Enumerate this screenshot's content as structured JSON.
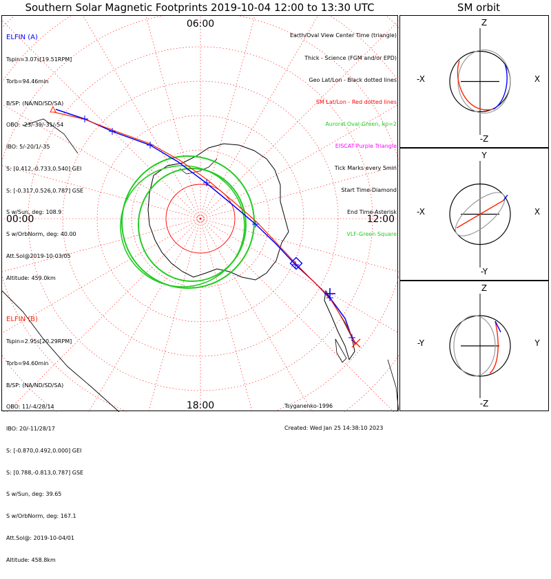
{
  "title": "Southern Solar Magnetic Footprints 2019-10-04 12:00 to 13:30 UTC",
  "sm_title": "SM orbit",
  "colors": {
    "sc_a": "#0000ff",
    "sc_b": "#ff2200",
    "oval": "#22cc22",
    "sm_grid": "#ff0000",
    "geo": "#000000",
    "viking": "#ff00ff"
  },
  "probe_a": {
    "name": "ELFIN (A)",
    "lines": [
      "Tspin=3.07s[19.51RPM]",
      "Torb=94.46min",
      "B/SP: (NA/ND/SD/SA)",
      "OBO: -23/-39/-31/-54",
      "IBO: 5/-20/1/-35",
      "S: [0.412,-0.733,0.540] GEI",
      "S: [-0.317,0.526,0.787] GSE",
      "S w/Sun, deg: 108.9",
      "S w/OrbNorm, deg: 40.00",
      "Att.Sol@2019-10-03/05",
      "Altitude: 459.0km"
    ]
  },
  "probe_b": {
    "name": "ELFIN (B)",
    "lines": [
      "Tspin=2.95s[20.29RPM]",
      "Torb=94.60min",
      "B/SP: (NA/ND/SD/SA)",
      "OBO: 11/-4/28/14",
      "IBO: 20/-11/28/17",
      "S: [-0.870,0.492,0.000] GEI",
      "S: [0.788,-0.813,0.787] GSE",
      "S w/Sun, deg: 39.65",
      "S w/OrbNorm, deg: 167.1",
      "Att.Sol@: 2019-10-04/01",
      "Altitude: 458.8km"
    ]
  },
  "legend": [
    {
      "text": "Earth/Oval View Center Time (triangle)",
      "color": "#000000"
    },
    {
      "text": "Thick - Science (FGM and/or EPD)",
      "color": "#000000"
    },
    {
      "text": "Geo Lat/Lon - Black dotted lines",
      "color": "#000000"
    },
    {
      "text": "SM Lat/Lon - Red dotted lines",
      "color": "#ff0000"
    },
    {
      "text": "Auroral Oval-Green, kp=2",
      "color": "#22cc22"
    },
    {
      "text": "EISCAT-Purple Triangle",
      "color": "#ff00ff"
    },
    {
      "text": "Tick Marks every 5min",
      "color": "#000000"
    },
    {
      "text": "Start Time-Diamond",
      "color": "#000000"
    },
    {
      "text": "End Time-Asterisk",
      "color": "#000000"
    },
    {
      "text": "VLF-Green Square",
      "color": "#22cc22"
    }
  ],
  "credits": [
    "Tsyganenko-1996",
    "Created: Wed Jan 25 14:38:10 2023"
  ],
  "time_labels": {
    "top": "06:00",
    "left": "00:00",
    "right": "12:00",
    "bottom": "18:00"
  },
  "sm_panels": [
    {
      "top_axis": "Z",
      "bottom_axis": "-Z",
      "left_axis": "-X",
      "right_axis": "X"
    },
    {
      "top_axis": "Y",
      "bottom_axis": "-Y",
      "left_axis": "-X",
      "right_axis": "X"
    },
    {
      "top_axis": "Z",
      "bottom_axis": "-Z",
      "left_axis": "-Y",
      "right_axis": "Y"
    }
  ],
  "chart_data": {
    "type": "scatter",
    "title": "Southern Solar Magnetic Footprints 2019-10-04 12:00 to 13:30 UTC",
    "projection": "south polar, SM coordinates",
    "grid": true,
    "series": [
      {
        "name": "ELFIN (A)",
        "color": "#0000ff"
      },
      {
        "name": "ELFIN (B)",
        "color": "#ff2200"
      }
    ],
    "legend_placement": "top-right"
  }
}
